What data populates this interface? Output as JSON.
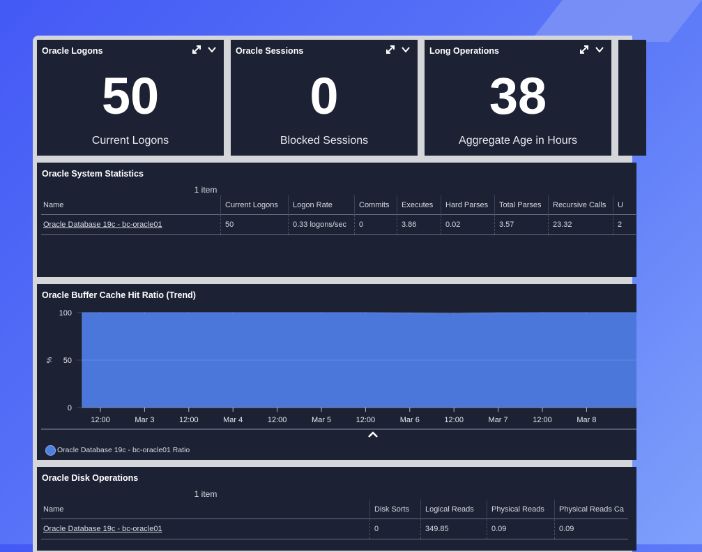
{
  "widgets": [
    {
      "title": "Oracle Logons",
      "value": "50",
      "subtitle": "Current Logons"
    },
    {
      "title": "Oracle Sessions",
      "value": "0",
      "subtitle": "Blocked Sessions"
    },
    {
      "title": "Long Operations",
      "value": "38",
      "subtitle": "Aggregate Age in Hours"
    }
  ],
  "system_stats": {
    "title": "Oracle System Statistics",
    "count": "1 item",
    "columns": [
      "Name",
      "Current Logons",
      "Logon Rate",
      "Commits",
      "Executes",
      "Hard Parses",
      "Total Parses",
      "Recursive Calls",
      "U"
    ],
    "rows": [
      [
        "Oracle Database 19c - bc-oracle01",
        "50",
        "0.33 logons/sec",
        "0",
        "3.86",
        "0.02",
        "3.57",
        "23.32",
        "2"
      ]
    ]
  },
  "buffer_chart": {
    "title": "Oracle Buffer Cache Hit Ratio (Trend)",
    "legend": "Oracle Database 19c - bc-oracle01 Ratio",
    "color": "#4a77d9",
    "chart_data": {
      "type": "area",
      "title": "Oracle Buffer Cache Hit Ratio (Trend)",
      "xlabel": "",
      "ylabel": "%",
      "ylim": [
        0,
        100
      ],
      "y_ticks": [
        "100",
        "50",
        "0"
      ],
      "x_ticks": [
        "12:00",
        "Mar 3",
        "12:00",
        "Mar 4",
        "12:00",
        "Mar 5",
        "12:00",
        "Mar 6",
        "12:00",
        "Mar 7",
        "12:00",
        "Mar 8"
      ],
      "grid": true,
      "series": [
        {
          "name": "Oracle Database 19c - bc-oracle01 Ratio",
          "x": [
            "12:00",
            "Mar 3",
            "12:00",
            "Mar 4",
            "12:00",
            "Mar 5",
            "12:00",
            "Mar 6",
            "12:00",
            "Mar 7",
            "12:00",
            "Mar 8"
          ],
          "values": [
            100,
            100,
            100,
            100,
            100,
            100,
            100,
            99.5,
            99,
            99.8,
            100,
            100
          ]
        }
      ]
    }
  },
  "disk_ops": {
    "title": "Oracle Disk Operations",
    "count": "1 item",
    "columns": [
      "Name",
      "Disk Sorts",
      "Logical Reads",
      "Physical Reads",
      "Physical Reads Ca"
    ],
    "rows": [
      [
        "Oracle Database 19c - bc-oracle01",
        "0",
        "349.85",
        "0.09",
        "0.09"
      ]
    ]
  }
}
